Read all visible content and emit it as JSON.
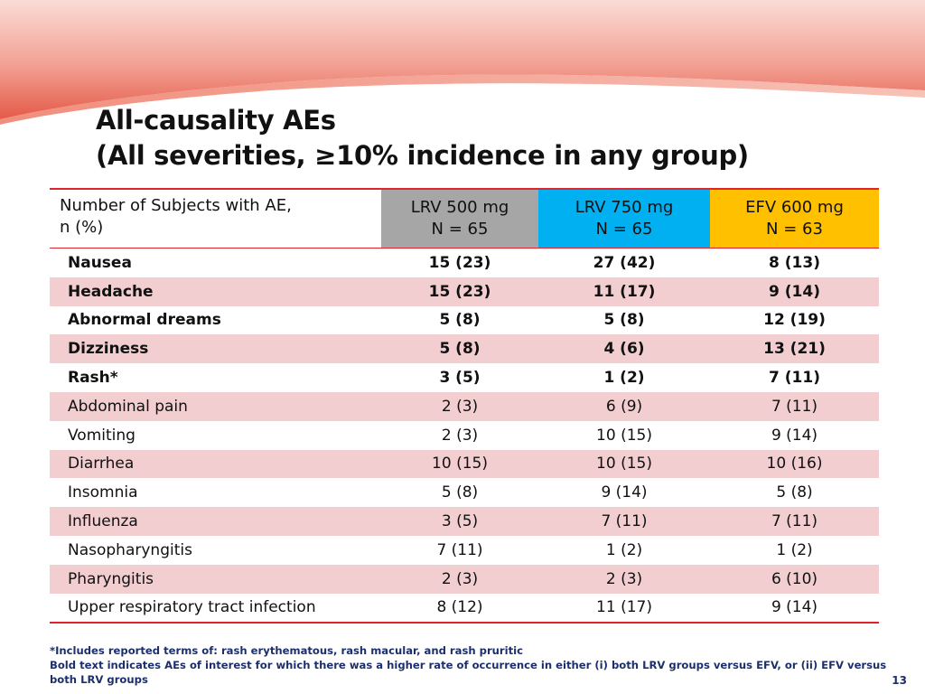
{
  "title": {
    "line1": "All-causality AEs",
    "line2": "(All severities, ≥10% incidence in any group)"
  },
  "table": {
    "header": {
      "label_line1": "Number of Subjects with AE,",
      "label_line2": "n (%)",
      "groups": [
        {
          "name": "LRV 500 mg",
          "n": "N = 65",
          "color": "#a6a6a6"
        },
        {
          "name": "LRV 750 mg",
          "n": "N = 65",
          "color": "#00b0f0"
        },
        {
          "name": "EFV 600 mg",
          "n": "N = 63",
          "color": "#ffc000"
        }
      ]
    },
    "rows": [
      {
        "label": "Nausea",
        "values": [
          "15 (23)",
          "27 (42)",
          "8 (13)"
        ],
        "bold": true
      },
      {
        "label": "Headache",
        "values": [
          "15 (23)",
          "11 (17)",
          "9 (14)"
        ],
        "bold": true
      },
      {
        "label": "Abnormal dreams",
        "values": [
          "5 (8)",
          "5 (8)",
          "12 (19)"
        ],
        "bold": true
      },
      {
        "label": "Dizziness",
        "values": [
          "5 (8)",
          "4 (6)",
          "13 (21)"
        ],
        "bold": true
      },
      {
        "label": "Rash*",
        "values": [
          "3 (5)",
          "1 (2)",
          "7 (11)"
        ],
        "bold": true
      },
      {
        "label": "Abdominal pain",
        "values": [
          "2 (3)",
          "6 (9)",
          "7 (11)"
        ],
        "bold": false
      },
      {
        "label": "Vomiting",
        "values": [
          "2 (3)",
          "10 (15)",
          "9 (14)"
        ],
        "bold": false
      },
      {
        "label": "Diarrhea",
        "values": [
          "10 (15)",
          "10 (15)",
          "10 (16)"
        ],
        "bold": false
      },
      {
        "label": "Insomnia",
        "values": [
          "5 (8)",
          "9 (14)",
          "5 (8)"
        ],
        "bold": false
      },
      {
        "label": "Influenza",
        "values": [
          "3 (5)",
          "7 (11)",
          "7 (11)"
        ],
        "bold": false
      },
      {
        "label": "Nasopharyngitis",
        "values": [
          "7 (11)",
          "1 (2)",
          "1 (2)"
        ],
        "bold": false
      },
      {
        "label": "Pharyngitis",
        "values": [
          "2 (3)",
          "2 (3)",
          "6 (10)"
        ],
        "bold": false
      },
      {
        "label": "Upper respiratory tract  infection",
        "values": [
          "8 (12)",
          "11 (17)",
          "9 (14)"
        ],
        "bold": false
      }
    ],
    "stripe_color": "#f2ced0",
    "rule_color": "#e0242d"
  },
  "footnotes": {
    "line1": "*Includes reported terms of: rash erythematous, rash macular, and rash pruritic",
    "line2": "Bold text indicates AEs  of interest for which there was a higher rate of occurrence in either (i) both LRV groups versus EFV, or (ii) EFV versus both LRV groups"
  },
  "page_number": "13"
}
